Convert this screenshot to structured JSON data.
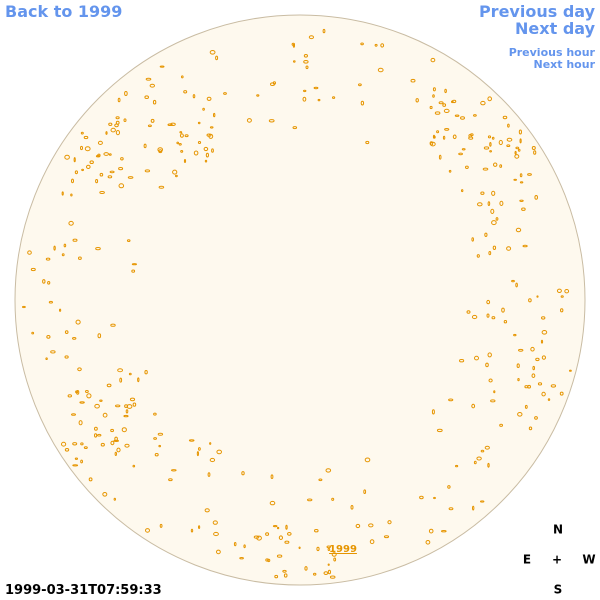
{
  "nav": {
    "back_year": "Back to 1999",
    "previous_day": "Previous day",
    "next_day": "Next day",
    "previous_hour": "Previous hour",
    "next_hour": "Next hour"
  },
  "image": {
    "label": "1999",
    "timestamp": "1999-03-31T07:59:33"
  },
  "compass": {
    "north": "N",
    "east": "E",
    "center": "+",
    "west": "W",
    "south": "S"
  }
}
